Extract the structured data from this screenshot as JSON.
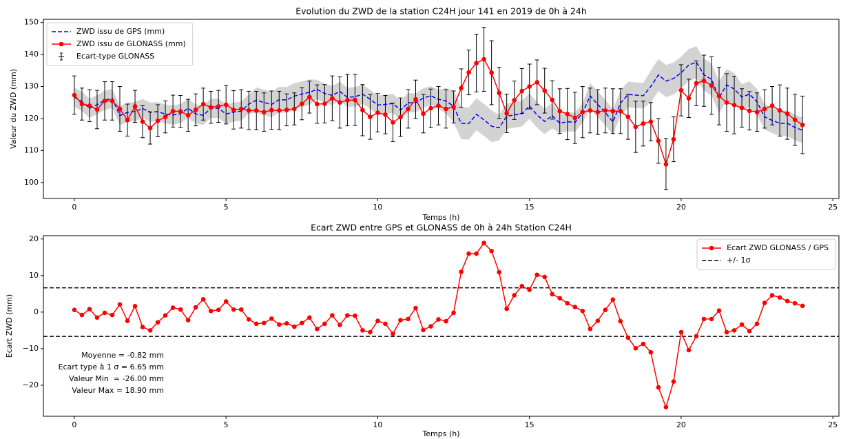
{
  "chart_data": [
    {
      "type": "line",
      "title": "Evolution du ZWD de la station C24H jour 141 en 2019 de 0h à 24h",
      "x_label": "Temps (h)",
      "y_label": "Valeur du ZWD (mm)",
      "xlim": [
        -1.02,
        25.2
      ],
      "xticks": [
        0,
        5,
        10,
        15,
        20,
        25
      ],
      "ylim": [
        95,
        151
      ],
      "yticks": [
        100,
        110,
        120,
        130,
        140,
        150
      ],
      "legend": "upper left",
      "x": [
        0,
        0.25,
        0.5,
        0.75,
        1,
        1.25,
        1.5,
        1.75,
        2,
        2.25,
        2.5,
        2.75,
        3,
        3.25,
        3.5,
        3.75,
        4,
        4.25,
        4.5,
        4.75,
        5,
        5.25,
        5.5,
        5.75,
        6,
        6.25,
        6.5,
        6.75,
        7,
        7.25,
        7.5,
        7.75,
        8,
        8.25,
        8.5,
        8.75,
        9,
        9.25,
        9.5,
        9.75,
        10,
        10.25,
        10.5,
        10.75,
        11,
        11.25,
        11.5,
        11.75,
        12,
        12.25,
        12.5,
        12.75,
        13,
        13.25,
        13.5,
        13.75,
        14,
        14.25,
        14.5,
        14.75,
        15,
        15.25,
        15.5,
        15.75,
        16,
        16.25,
        16.5,
        16.75,
        17,
        17.25,
        17.5,
        17.75,
        18,
        18.25,
        18.5,
        18.75,
        19,
        19.25,
        19.5,
        19.75,
        20,
        20.25,
        20.5,
        20.75,
        21,
        21.25,
        21.5,
        21.75,
        22,
        22.25,
        22.5,
        22.75,
        23,
        23.25,
        23.5,
        23.75,
        24
      ],
      "series": [
        {
          "name": "ZWD issu de GPS (mm)",
          "color": "#0000ff",
          "dashed": true,
          "band_color": "#d3d3d3",
          "values": [
            126.7,
            125.3,
            123.2,
            124.3,
            125.7,
            126.3,
            120.9,
            121.9,
            122.2,
            123.1,
            122,
            122.1,
            121.4,
            121.1,
            121.5,
            123.2,
            121.4,
            121,
            123.2,
            123.2,
            121.4,
            122,
            122.3,
            124.5,
            125.7,
            125,
            124.4,
            125.9,
            125.8,
            127,
            127.6,
            128.2,
            129.1,
            127.8,
            127.2,
            128.5,
            126.6,
            126.8,
            127.6,
            126,
            124.2,
            124.4,
            124.7,
            122.6,
            124.9,
            124.9,
            126.4,
            127.1,
            126,
            125.5,
            123.8,
            118.5,
            118.4,
            121.3,
            119.6,
            117.6,
            117.1,
            120.7,
            121.1,
            121.5,
            123.9,
            121.1,
            119.1,
            120.9,
            118.5,
            119,
            118.8,
            121.7,
            127.1,
            124.4,
            121.9,
            118.9,
            124.8,
            127.5,
            127.3,
            127.1,
            130,
            133.6,
            131.7,
            132.5,
            134.3,
            136.7,
            137.6,
            133.7,
            132.2,
            126.6,
            130.5,
            129.2,
            126.7,
            127.6,
            125.2,
            120.5,
            119.4,
            118.5,
            118.5,
            117.2,
            116.3
          ],
          "band": [
            3,
            3,
            3,
            3,
            3,
            3,
            3,
            3,
            3,
            3,
            3,
            3,
            3,
            3,
            3,
            3,
            3,
            3,
            3,
            3,
            3,
            3,
            3,
            3,
            4,
            4,
            4,
            4,
            4,
            4,
            4,
            4,
            3,
            3,
            3,
            3,
            3,
            3,
            3,
            3,
            3,
            3,
            3,
            3,
            3,
            3,
            3,
            3,
            3,
            4,
            5,
            5,
            5,
            5,
            5,
            5,
            4,
            4,
            4,
            4,
            4,
            4,
            4,
            4,
            3,
            3,
            3,
            3,
            4,
            4,
            4,
            4,
            4,
            4,
            4,
            4,
            5,
            5,
            5,
            5,
            5,
            5,
            5,
            5,
            5,
            5,
            5,
            5,
            4,
            4,
            4,
            4,
            4,
            4,
            4,
            4,
            4
          ]
        },
        {
          "name": "ZWD issu de GLONASS (mm)",
          "color": "#ff0000",
          "marker": true,
          "error_name": "Ecart-type GLONASS",
          "error_color": "#000000",
          "values": [
            127.3,
            124.5,
            124,
            122.8,
            125.5,
            125.5,
            123,
            119.5,
            123.8,
            119,
            117,
            119.3,
            120.5,
            122.3,
            122.2,
            121,
            122.7,
            124.5,
            123.5,
            123.8,
            124.3,
            122.7,
            123,
            122.5,
            122.5,
            122,
            122.6,
            122.5,
            122.7,
            123,
            124.6,
            126.7,
            124.5,
            124.6,
            126.3,
            125,
            125.7,
            125.8,
            122.6,
            120.5,
            121.8,
            121.2,
            118.8,
            120.4,
            123,
            126,
            121.5,
            123.2,
            124,
            123,
            123.6,
            129.5,
            134.4,
            137.3,
            138.5,
            134.3,
            128,
            121.6,
            125.7,
            128.6,
            130,
            131.3,
            128.7,
            125.8,
            122.3,
            121.4,
            120.2,
            122,
            122.5,
            122,
            122.5,
            122.3,
            122.3,
            120.5,
            117.4,
            118.4,
            119,
            113,
            105.7,
            113.5,
            128.8,
            126.3,
            131,
            131.8,
            130.3,
            127,
            125,
            124.2,
            123.3,
            122.4,
            122,
            123,
            124,
            122.5,
            121.5,
            119.6,
            118
          ],
          "errors": [
            6,
            5,
            5,
            6,
            6,
            6,
            7,
            5,
            5,
            5,
            5,
            5,
            5,
            5,
            5,
            5,
            5,
            5,
            5,
            5,
            6,
            6,
            6,
            6,
            6,
            6,
            6,
            6,
            5,
            5,
            5,
            5,
            6,
            6,
            7,
            8,
            8,
            8,
            8,
            7,
            6,
            6,
            6,
            6,
            6,
            6,
            6,
            6,
            6,
            6,
            5,
            6,
            7,
            9,
            10,
            10,
            8,
            6,
            6,
            7,
            7,
            7,
            7,
            6,
            7,
            8,
            8,
            8,
            7,
            7,
            7,
            7,
            7,
            7,
            8,
            7,
            6,
            7,
            8,
            7,
            8,
            6,
            7,
            8,
            9,
            9,
            9,
            9,
            6,
            6,
            6,
            6,
            6,
            8,
            8,
            8,
            9
          ]
        }
      ]
    },
    {
      "type": "line",
      "title": "Ecart ZWD entre GPS et GLONASS de 0h à 24h Station C24H",
      "x_label": "Temps (h)",
      "y_label": "Ecart ZWD (mm)",
      "xlim": [
        -1.02,
        25.2
      ],
      "xticks": [
        0,
        5,
        10,
        15,
        20,
        25
      ],
      "ylim": [
        -28.5,
        20.9
      ],
      "yticks": [
        {
          "value": -20,
          "label": "−20"
        },
        {
          "value": -10,
          "label": "−10"
        },
        0,
        10,
        20
      ],
      "legend": "upper right",
      "x": [
        0,
        0.25,
        0.5,
        0.75,
        1,
        1.25,
        1.5,
        1.75,
        2,
        2.25,
        2.5,
        2.75,
        3,
        3.25,
        3.5,
        3.75,
        4,
        4.25,
        4.5,
        4.75,
        5,
        5.25,
        5.5,
        5.75,
        6,
        6.25,
        6.5,
        6.75,
        7,
        7.25,
        7.5,
        7.75,
        8,
        8.25,
        8.5,
        8.75,
        9,
        9.25,
        9.5,
        9.75,
        10,
        10.25,
        10.5,
        10.75,
        11,
        11.25,
        11.5,
        11.75,
        12,
        12.25,
        12.5,
        12.75,
        13,
        13.25,
        13.5,
        13.75,
        14,
        14.25,
        14.5,
        14.75,
        15,
        15.25,
        15.5,
        15.75,
        16,
        16.25,
        16.5,
        16.75,
        17,
        17.25,
        17.5,
        17.75,
        18,
        18.25,
        18.5,
        18.75,
        19,
        19.25,
        19.5,
        19.75,
        20,
        20.25,
        20.5,
        20.75,
        21,
        21.25,
        21.5,
        21.75,
        22,
        22.25,
        22.5,
        22.75,
        23,
        23.25,
        23.5,
        23.75,
        24
      ],
      "series": [
        {
          "name": "Ecart ZWD GLONASS / GPS",
          "color": "#ff0000",
          "marker": true,
          "values": [
            0.6,
            -0.8,
            0.8,
            -1.5,
            -0.2,
            -0.8,
            2.1,
            -2.4,
            1.6,
            -4.1,
            -5,
            -2.8,
            -0.9,
            1.2,
            0.7,
            -2.2,
            1.3,
            3.5,
            0.3,
            0.6,
            2.9,
            0.7,
            0.7,
            -2,
            -3.2,
            -3,
            -1.8,
            -3.4,
            -3.1,
            -4,
            -3,
            -1.5,
            -4.6,
            -3.2,
            -0.9,
            -3.5,
            -0.9,
            -1,
            -5,
            -5.5,
            -2.4,
            -3.2,
            -5.9,
            -2.2,
            -1.9,
            1.1,
            -4.9,
            -3.9,
            -2,
            -2.5,
            -0.2,
            11,
            16,
            16,
            18.9,
            16.7,
            10.9,
            0.9,
            4.6,
            7.1,
            6.1,
            10.2,
            9.6,
            4.9,
            3.8,
            2.4,
            1.4,
            0.3,
            -4.6,
            -2.4,
            0.6,
            3.4,
            -2.5,
            -7,
            -9.9,
            -8.7,
            -11,
            -20.6,
            -26,
            -19,
            -5.5,
            -10.4,
            -6.6,
            -1.9,
            -1.9,
            0.4,
            -5.5,
            -5,
            -3.4,
            -5.2,
            -3.2,
            2.5,
            4.6,
            4,
            3,
            2.4,
            1.7
          ]
        }
      ],
      "hlines": {
        "name": "+/- 1σ",
        "color": "#000000",
        "values": [
          6.65,
          -6.65
        ]
      },
      "annotation": [
        "Moyenne = -0.82 mm",
        "Ecart type à 1 σ = 6.65 mm",
        "Valeur Min  = -26.00 mm",
        "Valeur Max = 18.90 mm"
      ]
    }
  ]
}
